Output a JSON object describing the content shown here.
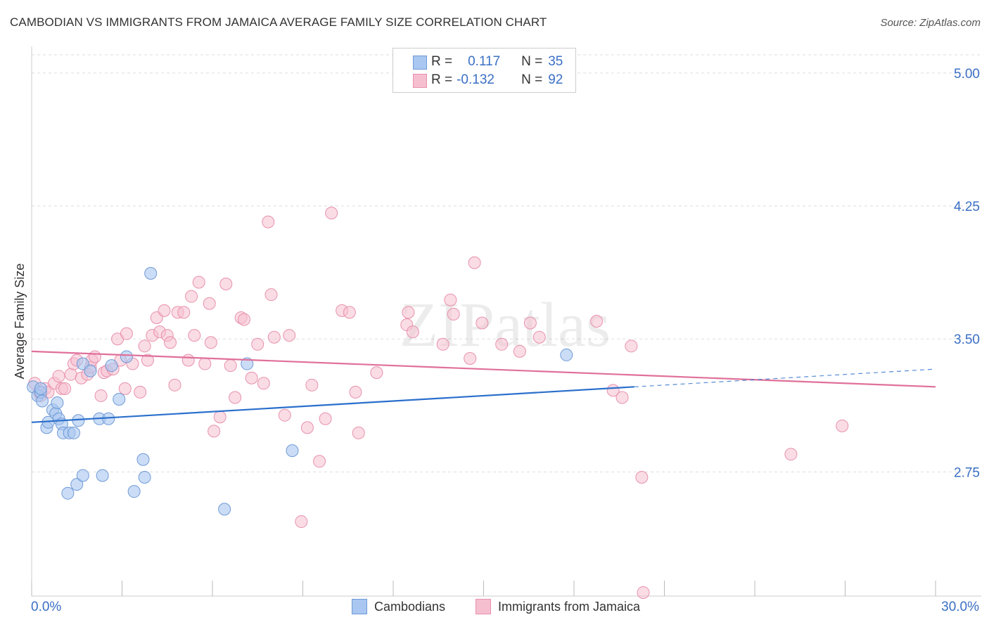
{
  "title": "CAMBODIAN VS IMMIGRANTS FROM JAMAICA AVERAGE FAMILY SIZE CORRELATION CHART",
  "source": "Source: ZipAtlas.com",
  "watermark": "ZIPatlas",
  "legend_top": {
    "rows": [
      {
        "r_label": "R =",
        "r_value": "0.117",
        "n_label": "N =",
        "n_value": "35"
      },
      {
        "r_label": "R =",
        "r_value": "-0.132",
        "n_label": "N =",
        "n_value": "92"
      }
    ]
  },
  "colors": {
    "blue_fill": "#a9c7f0",
    "blue_stroke": "#6f9ad6",
    "blue_line": "#2a6fcc",
    "pink_fill": "#f6bfd0",
    "pink_stroke": "#e891ad",
    "pink_line": "#e0709a",
    "tick_label": "#3a6fc4",
    "grid": "#dddddd"
  },
  "chart_data": {
    "type": "scatter",
    "title": "CAMBODIAN VS IMMIGRANTS FROM JAMAICA AVERAGE FAMILY SIZE CORRELATION CHART",
    "xlabel": "",
    "ylabel": "Average Family Size",
    "xlim": [
      0,
      30
    ],
    "ylim": [
      2.05,
      5.15
    ],
    "x_tick_labels": [
      "0.0%",
      "30.0%"
    ],
    "y_ticks": [
      2.75,
      3.5,
      4.25,
      5.0
    ],
    "y_tick_labels": [
      "2.75",
      "3.50",
      "4.25",
      "5.00"
    ],
    "grid": "horizontal dashed",
    "legend_position": "bottom",
    "series": [
      {
        "name": "Cambodians",
        "color": "#a9c7f0",
        "points": [
          [
            0.05,
            3.23
          ],
          [
            0.2,
            3.18
          ],
          [
            0.3,
            3.2
          ],
          [
            0.35,
            3.15
          ],
          [
            0.5,
            3.0
          ],
          [
            0.55,
            3.03
          ],
          [
            0.7,
            3.1
          ],
          [
            0.8,
            3.08
          ],
          [
            0.85,
            3.14
          ],
          [
            0.9,
            3.05
          ],
          [
            1.0,
            3.02
          ],
          [
            1.05,
            2.97
          ],
          [
            1.2,
            2.63
          ],
          [
            1.25,
            2.97
          ],
          [
            1.4,
            2.97
          ],
          [
            1.5,
            2.68
          ],
          [
            1.55,
            3.04
          ],
          [
            1.7,
            2.73
          ],
          [
            1.7,
            3.36
          ],
          [
            1.95,
            3.32
          ],
          [
            2.25,
            3.05
          ],
          [
            2.35,
            2.73
          ],
          [
            2.55,
            3.05
          ],
          [
            2.65,
            3.35
          ],
          [
            2.9,
            3.16
          ],
          [
            3.15,
            3.4
          ],
          [
            3.4,
            2.64
          ],
          [
            3.7,
            2.82
          ],
          [
            3.75,
            2.72
          ],
          [
            3.95,
            3.87
          ],
          [
            6.4,
            2.54
          ],
          [
            7.15,
            3.36
          ],
          [
            8.65,
            2.87
          ],
          [
            17.75,
            3.41
          ],
          [
            0.3,
            3.22
          ]
        ]
      },
      {
        "name": "Immigrants from Jamaica",
        "color": "#f6bfd0",
        "points": [
          [
            0.1,
            3.25
          ],
          [
            0.25,
            3.2
          ],
          [
            0.3,
            3.18
          ],
          [
            0.45,
            3.22
          ],
          [
            0.55,
            3.2
          ],
          [
            0.75,
            3.25
          ],
          [
            0.9,
            3.29
          ],
          [
            1.0,
            3.22
          ],
          [
            1.1,
            3.22
          ],
          [
            1.3,
            3.3
          ],
          [
            1.4,
            3.36
          ],
          [
            1.5,
            3.38
          ],
          [
            1.65,
            3.28
          ],
          [
            1.85,
            3.3
          ],
          [
            1.95,
            3.34
          ],
          [
            2.0,
            3.38
          ],
          [
            2.1,
            3.4
          ],
          [
            2.3,
            3.18
          ],
          [
            2.4,
            3.31
          ],
          [
            2.5,
            3.32
          ],
          [
            2.7,
            3.33
          ],
          [
            2.85,
            3.5
          ],
          [
            2.95,
            3.38
          ],
          [
            3.1,
            3.22
          ],
          [
            3.15,
            3.53
          ],
          [
            3.35,
            3.36
          ],
          [
            3.6,
            3.2
          ],
          [
            3.75,
            3.46
          ],
          [
            3.85,
            3.38
          ],
          [
            4.0,
            3.52
          ],
          [
            4.15,
            3.62
          ],
          [
            4.25,
            3.54
          ],
          [
            4.4,
            3.66
          ],
          [
            4.5,
            3.52
          ],
          [
            4.6,
            3.48
          ],
          [
            4.75,
            3.24
          ],
          [
            4.85,
            3.65
          ],
          [
            5.05,
            3.65
          ],
          [
            5.2,
            3.38
          ],
          [
            5.3,
            3.74
          ],
          [
            5.4,
            3.52
          ],
          [
            5.55,
            3.82
          ],
          [
            5.75,
            3.36
          ],
          [
            5.9,
            3.7
          ],
          [
            5.95,
            3.48
          ],
          [
            6.05,
            2.98
          ],
          [
            6.25,
            3.06
          ],
          [
            6.45,
            3.81
          ],
          [
            6.6,
            3.35
          ],
          [
            6.75,
            3.17
          ],
          [
            6.95,
            3.62
          ],
          [
            7.05,
            3.61
          ],
          [
            7.3,
            3.28
          ],
          [
            7.5,
            3.47
          ],
          [
            7.7,
            3.25
          ],
          [
            7.85,
            4.16
          ],
          [
            7.95,
            3.75
          ],
          [
            8.05,
            3.51
          ],
          [
            8.4,
            3.07
          ],
          [
            8.55,
            3.52
          ],
          [
            8.95,
            2.47
          ],
          [
            9.15,
            3.0
          ],
          [
            9.3,
            3.24
          ],
          [
            9.55,
            2.81
          ],
          [
            9.75,
            3.05
          ],
          [
            9.95,
            4.21
          ],
          [
            10.3,
            3.66
          ],
          [
            10.55,
            3.65
          ],
          [
            10.75,
            3.2
          ],
          [
            10.85,
            2.97
          ],
          [
            11.45,
            3.31
          ],
          [
            12.45,
            3.58
          ],
          [
            12.5,
            3.65
          ],
          [
            12.65,
            3.54
          ],
          [
            13.65,
            3.47
          ],
          [
            13.9,
            3.72
          ],
          [
            14.0,
            3.64
          ],
          [
            14.55,
            3.39
          ],
          [
            14.7,
            3.93
          ],
          [
            14.95,
            3.59
          ],
          [
            15.6,
            3.47
          ],
          [
            16.2,
            3.43
          ],
          [
            16.55,
            3.59
          ],
          [
            16.85,
            3.51
          ],
          [
            18.75,
            3.6
          ],
          [
            19.3,
            3.21
          ],
          [
            19.6,
            3.17
          ],
          [
            19.9,
            3.46
          ],
          [
            20.25,
            2.72
          ],
          [
            20.3,
            2.07
          ],
          [
            25.2,
            2.85
          ],
          [
            26.9,
            3.01
          ]
        ]
      }
    ],
    "trendlines": [
      {
        "series": "Cambodians",
        "x0": 0,
        "y0": 3.03,
        "x1": 20,
        "y1": 3.23,
        "dashed_to_x": 30,
        "dashed_to_y": 3.33
      },
      {
        "series": "Immigrants from Jamaica",
        "x0": 0,
        "y0": 3.43,
        "x1": 30,
        "y1": 3.23
      }
    ]
  },
  "bottom_legend": [
    {
      "label": "Cambodians"
    },
    {
      "label": "Immigrants from Jamaica"
    }
  ]
}
